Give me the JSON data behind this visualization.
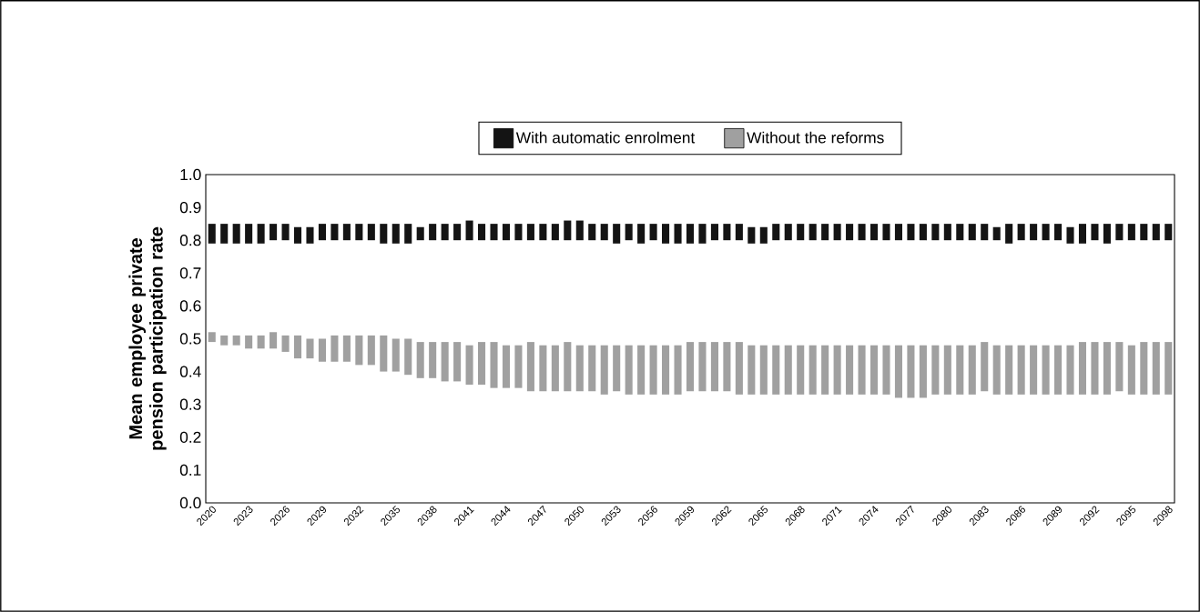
{
  "chart_data": {
    "type": "bar",
    "ylabel": "Mean employee private pension participation rate",
    "categories": [
      "2020",
      null,
      null,
      "2023",
      null,
      null,
      "2026",
      null,
      null,
      "2029",
      null,
      null,
      "2032",
      null,
      null,
      "2035",
      null,
      null,
      "2038",
      null,
      null,
      "2041",
      null,
      null,
      "2044",
      null,
      null,
      "2047",
      null,
      null,
      "2050",
      null,
      null,
      "2053",
      null,
      null,
      "2056",
      null,
      null,
      "2059",
      null,
      null,
      "2062",
      null,
      null,
      "2065",
      null,
      null,
      "2068",
      null,
      null,
      "2071",
      null,
      null,
      "2074",
      null,
      null,
      "2077",
      null,
      null,
      "2080",
      null,
      null,
      "2083",
      null,
      null,
      "2086",
      null,
      null,
      "2089",
      null,
      null,
      "2092",
      null,
      null,
      "2095",
      null,
      null,
      "2098"
    ],
    "series": [
      {
        "name": "With automatic enrolment",
        "color": "#141414",
        "base": [
          0.79,
          0.79,
          0.79,
          0.79,
          0.79,
          0.8,
          0.8,
          0.79,
          0.79,
          0.8,
          0.8,
          0.8,
          0.8,
          0.8,
          0.79,
          0.79,
          0.79,
          0.8,
          0.8,
          0.8,
          0.8,
          0.8,
          0.8,
          0.8,
          0.8,
          0.8,
          0.8,
          0.8,
          0.8,
          0.8,
          0.8,
          0.8,
          0.8,
          0.79,
          0.8,
          0.79,
          0.8,
          0.79,
          0.79,
          0.79,
          0.79,
          0.8,
          0.8,
          0.8,
          0.79,
          0.79,
          0.8,
          0.8,
          0.8,
          0.8,
          0.8,
          0.8,
          0.8,
          0.8,
          0.8,
          0.8,
          0.8,
          0.8,
          0.8,
          0.8,
          0.8,
          0.8,
          0.8,
          0.8,
          0.8,
          0.79,
          0.8,
          0.8,
          0.8,
          0.8,
          0.79,
          0.79,
          0.8,
          0.79,
          0.8,
          0.8,
          0.8,
          0.8,
          0.8
        ],
        "values": [
          0.06,
          0.06,
          0.06,
          0.06,
          0.06,
          0.05,
          0.05,
          0.05,
          0.05,
          0.05,
          0.05,
          0.05,
          0.05,
          0.05,
          0.06,
          0.06,
          0.06,
          0.04,
          0.05,
          0.05,
          0.05,
          0.06,
          0.05,
          0.05,
          0.05,
          0.05,
          0.05,
          0.05,
          0.05,
          0.06,
          0.06,
          0.05,
          0.05,
          0.06,
          0.05,
          0.06,
          0.05,
          0.06,
          0.06,
          0.06,
          0.06,
          0.05,
          0.05,
          0.05,
          0.05,
          0.05,
          0.05,
          0.05,
          0.05,
          0.05,
          0.05,
          0.05,
          0.05,
          0.05,
          0.05,
          0.05,
          0.05,
          0.05,
          0.05,
          0.05,
          0.05,
          0.05,
          0.05,
          0.05,
          0.04,
          0.06,
          0.05,
          0.05,
          0.05,
          0.05,
          0.05,
          0.06,
          0.05,
          0.06,
          0.05,
          0.05,
          0.05,
          0.05,
          0.05
        ]
      },
      {
        "name": "Without the reforms",
        "color": "#a0a0a0",
        "base": [
          0.49,
          0.48,
          0.48,
          0.47,
          0.47,
          0.47,
          0.46,
          0.44,
          0.44,
          0.43,
          0.43,
          0.43,
          0.42,
          0.42,
          0.4,
          0.4,
          0.39,
          0.38,
          0.38,
          0.37,
          0.37,
          0.36,
          0.36,
          0.35,
          0.35,
          0.35,
          0.34,
          0.34,
          0.34,
          0.34,
          0.34,
          0.34,
          0.33,
          0.34,
          0.33,
          0.33,
          0.33,
          0.33,
          0.33,
          0.34,
          0.34,
          0.34,
          0.34,
          0.33,
          0.33,
          0.33,
          0.33,
          0.33,
          0.33,
          0.33,
          0.33,
          0.33,
          0.33,
          0.33,
          0.33,
          0.33,
          0.32,
          0.32,
          0.32,
          0.33,
          0.33,
          0.33,
          0.33,
          0.34,
          0.33,
          0.33,
          0.33,
          0.33,
          0.33,
          0.33,
          0.33,
          0.33,
          0.33,
          0.33,
          0.34,
          0.33,
          0.33,
          0.33,
          0.33
        ],
        "values": [
          0.03,
          0.03,
          0.03,
          0.04,
          0.04,
          0.05,
          0.05,
          0.07,
          0.06,
          0.07,
          0.08,
          0.08,
          0.09,
          0.09,
          0.11,
          0.1,
          0.11,
          0.11,
          0.11,
          0.12,
          0.12,
          0.12,
          0.13,
          0.14,
          0.13,
          0.13,
          0.15,
          0.14,
          0.14,
          0.15,
          0.14,
          0.14,
          0.15,
          0.14,
          0.15,
          0.15,
          0.15,
          0.15,
          0.15,
          0.15,
          0.15,
          0.15,
          0.15,
          0.16,
          0.15,
          0.15,
          0.15,
          0.15,
          0.15,
          0.15,
          0.15,
          0.15,
          0.15,
          0.15,
          0.15,
          0.15,
          0.16,
          0.16,
          0.16,
          0.15,
          0.15,
          0.15,
          0.15,
          0.15,
          0.15,
          0.15,
          0.15,
          0.15,
          0.15,
          0.15,
          0.15,
          0.16,
          0.16,
          0.16,
          0.15,
          0.15,
          0.16,
          0.16,
          0.16
        ]
      }
    ],
    "ylim": [
      0,
      1
    ],
    "yticks": [
      {
        "value": 0,
        "label": "0.0"
      },
      0.1,
      0.2,
      0.3,
      0.4,
      0.5,
      0.6,
      0.7,
      0.8,
      0.9,
      {
        "value": 1,
        "label": "1.0"
      }
    ],
    "legend": "top"
  }
}
